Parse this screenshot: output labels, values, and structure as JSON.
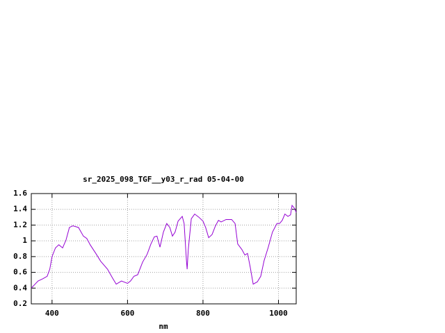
{
  "chart_data": {
    "type": "line",
    "title": "sr_2025_098_TGF__y03_r_rad 05-04-00",
    "x_label": "nm",
    "x": [
      345,
      363,
      376,
      387,
      394,
      400,
      409,
      418,
      428,
      437,
      446,
      455,
      470,
      483,
      492,
      501,
      516,
      529,
      547,
      560,
      570,
      584,
      600,
      608,
      617,
      627,
      640,
      652,
      662,
      671,
      678,
      686,
      695,
      704,
      712,
      719,
      726,
      734,
      745,
      750,
      756,
      758,
      761,
      769,
      778,
      789,
      800,
      807,
      815,
      824,
      833,
      841,
      848,
      861,
      876,
      885,
      892,
      903,
      911,
      918,
      925,
      933,
      944,
      953,
      962,
      973,
      984,
      996,
      1003,
      1010,
      1017,
      1025,
      1032,
      1036,
      1043,
      1047
    ],
    "values": [
      0.4,
      0.49,
      0.52,
      0.55,
      0.64,
      0.8,
      0.91,
      0.95,
      0.91,
      1.01,
      1.17,
      1.19,
      1.17,
      1.06,
      1.03,
      0.95,
      0.84,
      0.74,
      0.64,
      0.53,
      0.45,
      0.49,
      0.46,
      0.49,
      0.55,
      0.57,
      0.73,
      0.83,
      0.96,
      1.05,
      1.06,
      0.92,
      1.11,
      1.22,
      1.17,
      1.06,
      1.11,
      1.25,
      1.31,
      1.22,
      0.76,
      0.64,
      0.89,
      1.28,
      1.34,
      1.3,
      1.25,
      1.17,
      1.04,
      1.08,
      1.19,
      1.26,
      1.24,
      1.27,
      1.27,
      1.22,
      0.96,
      0.89,
      0.82,
      0.84,
      0.67,
      0.45,
      0.48,
      0.55,
      0.75,
      0.92,
      1.11,
      1.22,
      1.22,
      1.26,
      1.34,
      1.31,
      1.33,
      1.45,
      1.41,
      1.36
    ],
    "color": "#9400d3",
    "xlim": [
      345,
      1047
    ],
    "xticks": [
      400,
      600,
      800,
      1000
    ],
    "ylim": [
      0.2,
      1.6
    ],
    "yticks": [
      0.2,
      0.4,
      0.6,
      0.8,
      1,
      1.2,
      1.4,
      1.6
    ],
    "grid": true
  }
}
